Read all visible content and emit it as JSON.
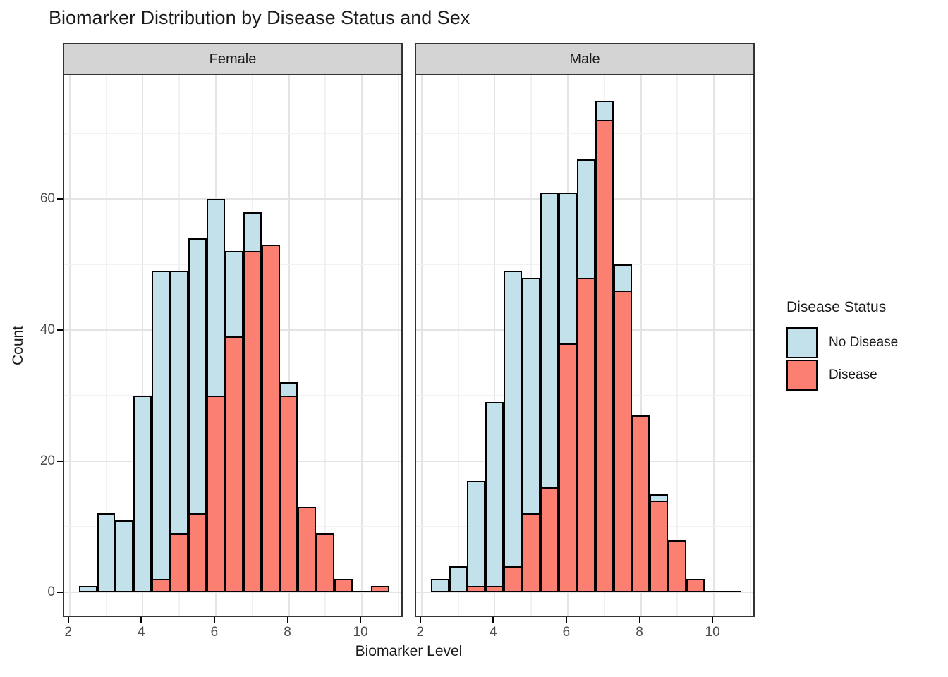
{
  "title": "Biomarker Distribution by Disease Status and Sex",
  "axes": {
    "x_label": "Biomarker Level",
    "y_label": "Count",
    "x_major_ticks": [
      2,
      4,
      6,
      8,
      10
    ],
    "x_minor_ticks": [
      3,
      5,
      7,
      9,
      11
    ],
    "y_major_ticks": [
      0,
      20,
      40,
      60
    ],
    "y_minor_ticks": [
      10,
      30,
      50,
      70
    ]
  },
  "legend": {
    "title": "Disease Status",
    "entries": [
      {
        "label": "No Disease",
        "color": "#c3e1ea"
      },
      {
        "label": "Disease",
        "color": "#fb8072"
      }
    ]
  },
  "chart_data": {
    "type": "bar",
    "subtype": "overlaid-histogram-faceted",
    "title": "Biomarker Distribution by Disease Status and Sex",
    "xlabel": "Biomarker Level",
    "ylabel": "Count",
    "binwidth": 0.5,
    "x_range": [
      2,
      11
    ],
    "y_range": [
      0,
      75
    ],
    "grid": true,
    "legend_position": "right",
    "facets": [
      {
        "label": "Female",
        "series": [
          {
            "name": "No Disease",
            "color": "#c3e1ea",
            "bins": [
              [
                2.25,
                1
              ],
              [
                2.75,
                12
              ],
              [
                3.25,
                11
              ],
              [
                3.75,
                30
              ],
              [
                4.25,
                49
              ],
              [
                4.75,
                49
              ],
              [
                5.25,
                54
              ],
              [
                5.75,
                60
              ],
              [
                6.25,
                52
              ],
              [
                6.75,
                58
              ],
              [
                7.75,
                32
              ]
            ]
          },
          {
            "name": "Disease",
            "color": "#fb8072",
            "bins": [
              [
                4.25,
                2
              ],
              [
                4.75,
                9
              ],
              [
                5.25,
                12
              ],
              [
                5.75,
                30
              ],
              [
                6.25,
                39
              ],
              [
                6.75,
                52
              ],
              [
                7.25,
                53
              ],
              [
                7.75,
                30
              ],
              [
                8.25,
                13
              ],
              [
                8.75,
                9
              ],
              [
                9.25,
                2
              ],
              [
                10.25,
                1
              ]
            ]
          }
        ]
      },
      {
        "label": "Male",
        "series": [
          {
            "name": "No Disease",
            "color": "#c3e1ea",
            "bins": [
              [
                2.25,
                2
              ],
              [
                2.75,
                4
              ],
              [
                3.25,
                17
              ],
              [
                3.75,
                29
              ],
              [
                4.25,
                49
              ],
              [
                4.75,
                48
              ],
              [
                5.25,
                61
              ],
              [
                5.75,
                61
              ],
              [
                6.25,
                66
              ],
              [
                6.75,
                75
              ],
              [
                7.25,
                50
              ],
              [
                8.25,
                15
              ]
            ]
          },
          {
            "name": "Disease",
            "color": "#fb8072",
            "bins": [
              [
                3.25,
                1
              ],
              [
                3.75,
                1
              ],
              [
                4.25,
                4
              ],
              [
                4.75,
                12
              ],
              [
                5.25,
                16
              ],
              [
                5.75,
                38
              ],
              [
                6.25,
                48
              ],
              [
                6.75,
                72
              ],
              [
                7.25,
                46
              ],
              [
                7.75,
                27
              ],
              [
                8.25,
                14
              ],
              [
                8.75,
                8
              ],
              [
                9.25,
                2
              ]
            ]
          }
        ]
      }
    ]
  }
}
